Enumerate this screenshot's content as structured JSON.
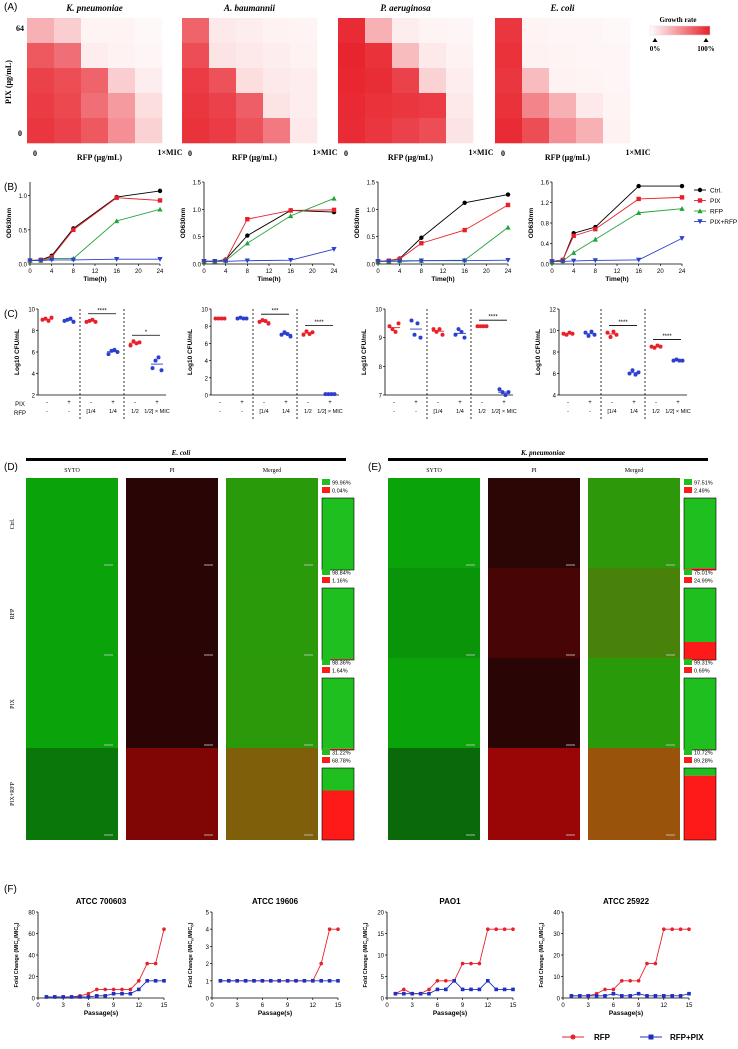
{
  "panel_labels": [
    "(A)",
    "(B)",
    "(C)",
    "(D)",
    "(E)",
    "(F)"
  ],
  "chart_data": [
    {
      "panel": "A",
      "type": "heatmap",
      "legend": {
        "title": "Growth rate",
        "low_label": "0%",
        "high_label": "100%",
        "low_color": "#ffffff",
        "high_color": "#e8202a"
      },
      "ylabel": "PIX (μg/mL)",
      "xlabel": "RFP (μg/mL)",
      "y_top_label": "64",
      "y_bottom_label": "0",
      "x_left_label": "0",
      "x_right_label": "1×MIC",
      "rows": 5,
      "cols": 5,
      "maps": [
        {
          "title": "K. pneumoniae",
          "values": [
            [
              0.35,
              0.22,
              0.05,
              0.05,
              0.03
            ],
            [
              0.75,
              0.65,
              0.08,
              0.06,
              0.04
            ],
            [
              0.85,
              0.8,
              0.7,
              0.22,
              0.08
            ],
            [
              0.88,
              0.82,
              0.65,
              0.45,
              0.15
            ],
            [
              0.9,
              0.85,
              0.75,
              0.5,
              0.2
            ]
          ]
        },
        {
          "title": "A. baumannii",
          "values": [
            [
              0.7,
              0.1,
              0.08,
              0.06,
              0.05
            ],
            [
              0.8,
              0.12,
              0.1,
              0.08,
              0.06
            ],
            [
              0.88,
              0.78,
              0.15,
              0.1,
              0.08
            ],
            [
              0.9,
              0.85,
              0.72,
              0.12,
              0.08
            ],
            [
              0.92,
              0.88,
              0.78,
              0.6,
              0.1
            ]
          ]
        },
        {
          "title": "P. aeruginosa",
          "values": [
            [
              0.95,
              0.35,
              0.08,
              0.05,
              0.04
            ],
            [
              0.98,
              0.92,
              0.3,
              0.1,
              0.06
            ],
            [
              0.97,
              0.94,
              0.85,
              0.2,
              0.08
            ],
            [
              0.96,
              0.92,
              0.9,
              0.88,
              0.1
            ],
            [
              0.95,
              0.9,
              0.85,
              0.8,
              0.12
            ]
          ]
        },
        {
          "title": "E. coli",
          "values": [
            [
              0.9,
              0.05,
              0.04,
              0.04,
              0.03
            ],
            [
              0.92,
              0.06,
              0.05,
              0.04,
              0.04
            ],
            [
              0.9,
              0.3,
              0.06,
              0.05,
              0.04
            ],
            [
              0.92,
              0.55,
              0.35,
              0.1,
              0.05
            ],
            [
              0.95,
              0.8,
              0.5,
              0.35,
              0.06
            ]
          ]
        }
      ]
    },
    {
      "panel": "B",
      "type": "line",
      "xlabel": "Time(h)",
      "ylabel": "OD630nm",
      "x": [
        0,
        2,
        4,
        8,
        16,
        24
      ],
      "x_ticks": [
        0,
        4,
        8,
        12,
        16,
        20,
        24
      ],
      "series_names": [
        "Ctrl.",
        "PIX",
        "RFP",
        "PIX+RFP"
      ],
      "series_colors": [
        "#000000",
        "#e8202a",
        "#22a33a",
        "#2c3fcf"
      ],
      "series_markers": [
        "circle",
        "square",
        "triangle-up",
        "triangle-down"
      ],
      "plots": [
        {
          "ylim": [
            0,
            1.2
          ],
          "y_ticks": [
            0,
            0.5,
            1.0
          ],
          "y_tick_labels": [
            "0.0",
            "0.5",
            "1.0"
          ],
          "values": [
            [
              0.05,
              0.06,
              0.12,
              0.52,
              0.98,
              1.07
            ],
            [
              0.05,
              0.06,
              0.1,
              0.5,
              0.97,
              0.93
            ],
            [
              0.05,
              0.05,
              0.08,
              0.08,
              0.63,
              0.8
            ],
            [
              0.05,
              0.05,
              0.06,
              0.06,
              0.07,
              0.07
            ]
          ]
        },
        {
          "ylim": [
            0,
            1.5
          ],
          "y_ticks": [
            0,
            0.5,
            1.0,
            1.5
          ],
          "y_tick_labels": [
            "0.0",
            "0.5",
            "1.0",
            "1.5"
          ],
          "values": [
            [
              0.05,
              0.05,
              0.08,
              0.52,
              0.98,
              0.95
            ],
            [
              0.05,
              0.05,
              0.07,
              0.82,
              0.98,
              0.99
            ],
            [
              0.05,
              0.05,
              0.06,
              0.38,
              0.88,
              1.2
            ],
            [
              0.05,
              0.05,
              0.05,
              0.06,
              0.07,
              0.27
            ]
          ]
        },
        {
          "ylim": [
            0,
            1.5
          ],
          "y_ticks": [
            0,
            0.5,
            1.0,
            1.5
          ],
          "y_tick_labels": [
            "0.0",
            "0.5",
            "1.0",
            "1.5"
          ],
          "values": [
            [
              0.05,
              0.06,
              0.1,
              0.48,
              1.12,
              1.27
            ],
            [
              0.05,
              0.06,
              0.09,
              0.38,
              0.62,
              1.08
            ],
            [
              0.05,
              0.05,
              0.06,
              0.06,
              0.07,
              0.67
            ],
            [
              0.05,
              0.05,
              0.05,
              0.06,
              0.06,
              0.07
            ]
          ]
        },
        {
          "ylim": [
            0,
            1.6
          ],
          "y_ticks": [
            0,
            0.4,
            0.8,
            1.2,
            1.6
          ],
          "y_tick_labels": [
            "0.0",
            "0.4",
            "0.8",
            "1.2",
            "1.6"
          ],
          "values": [
            [
              0.05,
              0.08,
              0.6,
              0.72,
              1.52,
              1.52
            ],
            [
              0.05,
              0.08,
              0.55,
              0.68,
              1.27,
              1.3
            ],
            [
              0.05,
              0.06,
              0.22,
              0.48,
              1.0,
              1.08
            ],
            [
              0.05,
              0.05,
              0.06,
              0.07,
              0.08,
              0.5
            ]
          ]
        }
      ]
    },
    {
      "panel": "C",
      "type": "scatter",
      "ylabel": "Log10 CFU/mL",
      "row_labels": [
        "PIX",
        "RFP"
      ],
      "groups": [
        {
          "pix": "-",
          "rfp": "-",
          "color": "#e8202a"
        },
        {
          "pix": "+",
          "rfp": "-",
          "color": "#2c3fcf"
        },
        {
          "pix": "-",
          "rfp": "[1/4",
          "color": "#e8202a"
        },
        {
          "pix": "+",
          "rfp": "1/4",
          "color": "#2c3fcf"
        },
        {
          "pix": "-",
          "rfp": "1/2",
          "color": "#e8202a"
        },
        {
          "pix": "+",
          "rfp": "1/2] × MIC",
          "color": "#2c3fcf"
        }
      ],
      "plots": [
        {
          "ylim": [
            2,
            10
          ],
          "y_ticks": [
            2,
            4,
            6,
            8,
            10
          ],
          "values": [
            [
              9.0,
              9.1,
              8.9,
              9.2
            ],
            [
              8.9,
              9.0,
              9.1,
              8.8
            ],
            [
              8.8,
              8.9,
              9.0,
              8.8
            ],
            [
              5.8,
              6.1,
              6.2,
              6.0
            ],
            [
              6.6,
              7.0,
              6.8,
              6.9
            ],
            [
              4.5,
              5.2,
              5.5,
              4.3
            ]
          ],
          "sig": [
            {
              "between": [
                2,
                3
              ],
              "label": "****"
            },
            {
              "between": [
                4,
                5
              ],
              "label": "*"
            }
          ]
        },
        {
          "ylim": [
            0,
            10
          ],
          "y_ticks": [
            0,
            2,
            4,
            6,
            8,
            10
          ],
          "values": [
            [
              8.9,
              8.9,
              8.9,
              8.9
            ],
            [
              8.9,
              9.0,
              8.9,
              8.9
            ],
            [
              8.5,
              8.7,
              8.6,
              8.3
            ],
            [
              7.0,
              7.3,
              7.1,
              6.8
            ],
            [
              7.0,
              7.4,
              7.1,
              7.3
            ],
            [
              0.1,
              0.1,
              0.1,
              0.1
            ]
          ],
          "sig": [
            {
              "between": [
                2,
                3
              ],
              "label": "***"
            },
            {
              "between": [
                4,
                5
              ],
              "label": "****"
            }
          ]
        },
        {
          "ylim": [
            7,
            10
          ],
          "y_ticks": [
            7,
            8,
            9,
            10
          ],
          "values": [
            [
              9.4,
              9.3,
              9.2,
              9.5
            ],
            [
              9.6,
              9.1,
              9.5,
              9.0
            ],
            [
              9.3,
              9.2,
              9.3,
              9.1
            ],
            [
              9.1,
              9.3,
              9.2,
              9.0
            ],
            [
              9.4,
              9.4,
              9.4,
              9.4
            ],
            [
              7.2,
              7.1,
              7.0,
              7.1
            ]
          ],
          "sig": [
            {
              "between": [
                4,
                5
              ],
              "label": "****"
            }
          ]
        },
        {
          "ylim": [
            4,
            12
          ],
          "y_ticks": [
            4,
            6,
            8,
            10,
            12
          ],
          "values": [
            [
              9.7,
              9.6,
              9.8,
              9.7
            ],
            [
              9.8,
              9.5,
              9.9,
              9.6
            ],
            [
              9.8,
              9.4,
              9.9,
              9.6
            ],
            [
              6.0,
              6.3,
              5.9,
              6.1
            ],
            [
              8.5,
              8.4,
              8.6,
              8.5
            ],
            [
              7.2,
              7.3,
              7.2,
              7.2
            ]
          ],
          "sig": [
            {
              "between": [
                2,
                3
              ],
              "label": "****"
            },
            {
              "between": [
                4,
                5
              ],
              "label": "****"
            }
          ]
        }
      ]
    },
    {
      "panel": "D-E",
      "type": "bar",
      "columns": [
        "SYTO",
        "PI",
        "Merged"
      ],
      "row_labels": [
        "Ctrl.",
        "RFP",
        "PIX",
        "PIX+RFP"
      ],
      "legend_colors": [
        "#1fbf1f",
        "#ff1a1a"
      ],
      "sets": [
        {
          "title": "E. coli",
          "green_pct": [
            99.96,
            98.84,
            98.36,
            31.22
          ],
          "red_pct": [
            0.04,
            1.16,
            1.64,
            68.78
          ],
          "green_labels": [
            "99.96%",
            "98.84%",
            "98.36%",
            "31.22%"
          ],
          "red_labels": [
            "0.04%",
            "1.16%",
            "1.64%",
            "68.78%"
          ]
        },
        {
          "title": "K. pneumoniae",
          "green_pct": [
            97.51,
            75.01,
            99.31,
            10.72
          ],
          "red_pct": [
            2.49,
            24.99,
            0.69,
            89.28
          ],
          "green_labels": [
            "97.51%",
            "75.01%",
            "99.31%",
            "10.72%"
          ],
          "red_labels": [
            "2.49%",
            "24.99%",
            "0.69%",
            "89.28%"
          ]
        }
      ]
    },
    {
      "panel": "F",
      "type": "line",
      "xlabel": "Passage(s)",
      "ylabel": "Fold Change (MIC",
      "x": [
        1,
        2,
        3,
        4,
        5,
        6,
        7,
        8,
        9,
        10,
        11,
        12,
        13,
        14,
        15
      ],
      "x_ticks": [
        0,
        3,
        6,
        9,
        12,
        15
      ],
      "series_names": [
        "RFP",
        "RFP+PIX"
      ],
      "series_colors": [
        "#e8202a",
        "#1f2fbf"
      ],
      "plots": [
        {
          "title": "ATCC 700603",
          "ylim": [
            0,
            80
          ],
          "y_ticks": [
            0,
            20,
            40,
            60,
            80
          ],
          "values": [
            [
              1,
              1,
              1,
              1,
              2,
              4,
              8,
              8,
              8,
              8,
              8,
              16,
              32,
              32,
              64
            ],
            [
              1,
              1,
              1,
              1,
              1,
              1,
              2,
              2,
              4,
              4,
              4,
              8,
              16,
              16,
              16
            ]
          ]
        },
        {
          "title": "ATCC 19606",
          "ylim": [
            0,
            5
          ],
          "y_ticks": [
            0,
            1,
            2,
            3,
            4,
            5
          ],
          "values": [
            [
              1,
              1,
              1,
              1,
              1,
              1,
              1,
              1,
              1,
              1,
              1,
              1,
              2,
              4,
              4
            ],
            [
              1,
              1,
              1,
              1,
              1,
              1,
              1,
              1,
              1,
              1,
              1,
              1,
              1,
              1,
              1
            ]
          ]
        },
        {
          "title": "PAO1",
          "ylim": [
            0,
            20
          ],
          "y_ticks": [
            0,
            5,
            10,
            15,
            20
          ],
          "values": [
            [
              1,
              2,
              1,
              1,
              2,
              4,
              4,
              4,
              8,
              8,
              8,
              16,
              16,
              16,
              16
            ],
            [
              1,
              1,
              1,
              1,
              1,
              2,
              2,
              4,
              2,
              2,
              2,
              4,
              2,
              2,
              2
            ]
          ]
        },
        {
          "title": "ATCC 25922",
          "ylim": [
            0,
            40
          ],
          "y_ticks": [
            0,
            10,
            20,
            30,
            40
          ],
          "values": [
            [
              1,
              1,
              1,
              2,
              4,
              4,
              8,
              8,
              8,
              16,
              16,
              32,
              32,
              32,
              32
            ],
            [
              1,
              1,
              1,
              1,
              1,
              2,
              1,
              1,
              2,
              1,
              1,
              1,
              1,
              1,
              2
            ]
          ]
        }
      ]
    }
  ]
}
